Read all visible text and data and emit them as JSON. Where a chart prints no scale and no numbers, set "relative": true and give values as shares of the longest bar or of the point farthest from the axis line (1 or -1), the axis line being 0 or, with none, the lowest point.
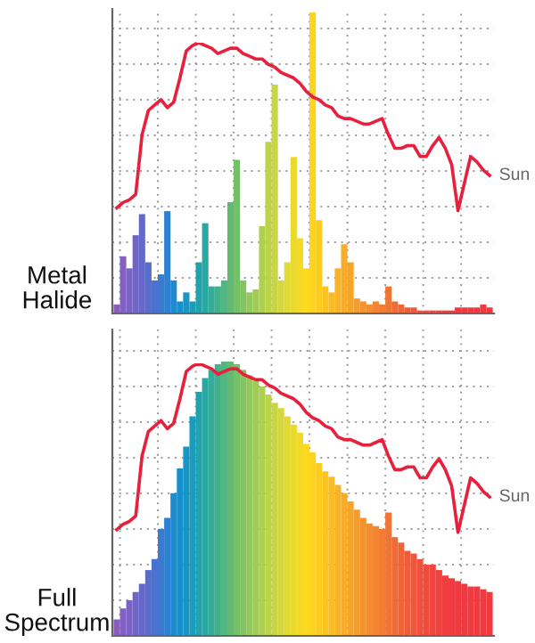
{
  "chart_data": [
    {
      "type": "bar",
      "ylabel": "Metal Halide",
      "relative": true,
      "grid": true,
      "categories": [
        null,
        null,
        null,
        null,
        null,
        null,
        null,
        null,
        null,
        null,
        null,
        null,
        null,
        null,
        null,
        null,
        null,
        null,
        null,
        null,
        null,
        null,
        null,
        null,
        null,
        null,
        null,
        null,
        null,
        null,
        null,
        null,
        null,
        null,
        null,
        null,
        null,
        null,
        null,
        null,
        null,
        null,
        null,
        null,
        null,
        null,
        null,
        null,
        null,
        null,
        null,
        null,
        null,
        null,
        null,
        null,
        null,
        null,
        null,
        null
      ],
      "colors": [
        "#8a5cc0",
        "#8260c4",
        "#7a62c6",
        "#7066c8",
        "#6468ca",
        "#586ccc",
        "#4a72ce",
        "#3c7ad0",
        "#2c82d0",
        "#1e8ad0",
        "#1690cc",
        "#1696c4",
        "#1a9cba",
        "#20a2ae",
        "#28a8a2",
        "#34ac96",
        "#42b08a",
        "#52b67e",
        "#62ba72",
        "#72c068",
        "#82c462",
        "#92c85c",
        "#a0cc56",
        "#aed050",
        "#bcd44a",
        "#c8d644",
        "#d4d83c",
        "#e0da34",
        "#eada2c",
        "#f4da24",
        "#fcd81e",
        "#fed41c",
        "#fccc1e",
        "#fcc420",
        "#fabc24",
        "#f8b426",
        "#f8ac28",
        "#f6a42a",
        "#f69c2c",
        "#f4942e",
        "#f48c30",
        "#f28432",
        "#f27c32",
        "#f07434",
        "#f06c36",
        "#f06438",
        "#f05c3a",
        "#f0563a",
        "#f0503c",
        "#f04a3c",
        "#f0463e",
        "#f0423e",
        "#f03e40",
        "#f03c40",
        "#f03a40",
        "#f03a40",
        "#f03a40",
        "#f03a40",
        "#f03a40",
        "#f03a40"
      ],
      "values": [
        0.03,
        0.19,
        0.15,
        0.26,
        0.33,
        0.17,
        0.11,
        0.13,
        0.34,
        0.11,
        0.04,
        0.07,
        0.04,
        0.17,
        0.3,
        0.09,
        0.09,
        0.11,
        0.37,
        0.51,
        0.11,
        0.07,
        0.08,
        0.29,
        0.57,
        0.76,
        0.11,
        0.17,
        0.52,
        0.25,
        0.15,
        1.0,
        0.31,
        0.09,
        0.07,
        0.15,
        0.23,
        0.17,
        0.05,
        0.04,
        0.03,
        0.04,
        0.03,
        0.09,
        0.04,
        0.03,
        0.02,
        0.02,
        0.01,
        0.01,
        0.01,
        0.01,
        0.01,
        0.01,
        0.02,
        0.02,
        0.02,
        0.02,
        0.03,
        0.02
      ]
    },
    {
      "type": "line",
      "relative": true,
      "categories": [
        null,
        null,
        null,
        null,
        null,
        null,
        null,
        null,
        null,
        null,
        null,
        null,
        null,
        null,
        null,
        null,
        null,
        null,
        null,
        null,
        null,
        null,
        null,
        null,
        null,
        null,
        null,
        null,
        null,
        null,
        null,
        null,
        null,
        null,
        null,
        null,
        null,
        null,
        null,
        null,
        null,
        null,
        null,
        null,
        null,
        null,
        null,
        null,
        null,
        null,
        null,
        null,
        null,
        null,
        null,
        null,
        null,
        null,
        null,
        null
      ],
      "series": [
        {
          "name": "Sun",
          "color": "#e8203c",
          "values": [
            0.39,
            0.41,
            0.42,
            0.44,
            0.66,
            0.75,
            0.77,
            0.79,
            0.76,
            0.78,
            0.87,
            0.97,
            0.99,
            1.0,
            0.99,
            0.98,
            0.96,
            0.97,
            0.98,
            0.98,
            0.96,
            0.95,
            0.94,
            0.94,
            0.92,
            0.91,
            0.89,
            0.88,
            0.87,
            0.85,
            0.82,
            0.8,
            0.79,
            0.77,
            0.76,
            0.73,
            0.72,
            0.72,
            0.71,
            0.7,
            0.7,
            0.71,
            0.72,
            0.66,
            0.61,
            0.61,
            0.62,
            0.62,
            0.58,
            0.58,
            0.62,
            0.65,
            0.61,
            0.55,
            0.38,
            0.48,
            0.58,
            0.56,
            0.53,
            0.51
          ]
        }
      ]
    },
    {
      "type": "bar",
      "ylabel": "Full Spectrum",
      "relative": true,
      "grid": true,
      "categories": [
        null,
        null,
        null,
        null,
        null,
        null,
        null,
        null,
        null,
        null,
        null,
        null,
        null,
        null,
        null,
        null,
        null,
        null,
        null,
        null,
        null,
        null,
        null,
        null,
        null,
        null,
        null,
        null,
        null,
        null,
        null,
        null,
        null,
        null,
        null,
        null,
        null,
        null,
        null,
        null,
        null,
        null,
        null,
        null,
        null,
        null,
        null,
        null,
        null,
        null,
        null,
        null,
        null,
        null,
        null,
        null,
        null,
        null,
        null,
        null
      ],
      "colors": [
        "#8a5cc0",
        "#8260c4",
        "#7a62c6",
        "#7066c8",
        "#6468ca",
        "#586ccc",
        "#4a72ce",
        "#3c7ad0",
        "#2c82d0",
        "#1e8ad0",
        "#1690cc",
        "#1696c4",
        "#1a9cba",
        "#20a2ae",
        "#28a8a2",
        "#34ac96",
        "#42b08a",
        "#52b67e",
        "#62ba72",
        "#72c068",
        "#82c462",
        "#92c85c",
        "#a0cc56",
        "#aed050",
        "#bcd44a",
        "#c8d644",
        "#d4d83c",
        "#e0da34",
        "#eada2c",
        "#f4da24",
        "#fcd81e",
        "#fed41c",
        "#fccc1e",
        "#fcc420",
        "#fabc24",
        "#f8b426",
        "#f8ac28",
        "#f6a42a",
        "#f69c2c",
        "#f4942e",
        "#f48c30",
        "#f28432",
        "#f27c32",
        "#f07434",
        "#f06c36",
        "#f06438",
        "#f05c3a",
        "#f0563a",
        "#f0503c",
        "#f04a3c",
        "#f0463e",
        "#f0423e",
        "#f03e40",
        "#f03c40",
        "#f03a40",
        "#f03a40",
        "#f03a40",
        "#f03a40",
        "#f03a40",
        "#f03a40"
      ],
      "values": [
        0.06,
        0.1,
        0.13,
        0.16,
        0.19,
        0.24,
        0.28,
        0.39,
        0.43,
        0.52,
        0.61,
        0.69,
        0.8,
        0.89,
        0.94,
        0.97,
        0.99,
        1.0,
        1.0,
        0.99,
        0.97,
        0.95,
        0.93,
        0.91,
        0.88,
        0.85,
        0.83,
        0.8,
        0.77,
        0.74,
        0.7,
        0.67,
        0.63,
        0.6,
        0.58,
        0.55,
        0.52,
        0.49,
        0.46,
        0.43,
        0.41,
        0.4,
        0.39,
        0.45,
        0.36,
        0.34,
        0.31,
        0.3,
        0.28,
        0.26,
        0.26,
        0.24,
        0.22,
        0.21,
        0.2,
        0.19,
        0.18,
        0.18,
        0.17,
        0.16
      ]
    },
    {
      "type": "line",
      "relative": true,
      "categories": [
        null,
        null,
        null,
        null,
        null,
        null,
        null,
        null,
        null,
        null,
        null,
        null,
        null,
        null,
        null,
        null,
        null,
        null,
        null,
        null,
        null,
        null,
        null,
        null,
        null,
        null,
        null,
        null,
        null,
        null,
        null,
        null,
        null,
        null,
        null,
        null,
        null,
        null,
        null,
        null,
        null,
        null,
        null,
        null,
        null,
        null,
        null,
        null,
        null,
        null,
        null,
        null,
        null,
        null,
        null,
        null,
        null,
        null,
        null,
        null
      ],
      "series": [
        {
          "name": "Sun",
          "color": "#e8203c",
          "values": [
            0.39,
            0.41,
            0.42,
            0.44,
            0.66,
            0.75,
            0.77,
            0.79,
            0.76,
            0.78,
            0.87,
            0.97,
            0.99,
            1.0,
            0.99,
            0.98,
            0.96,
            0.97,
            0.98,
            0.98,
            0.96,
            0.95,
            0.94,
            0.94,
            0.92,
            0.91,
            0.89,
            0.88,
            0.87,
            0.85,
            0.82,
            0.8,
            0.79,
            0.77,
            0.76,
            0.73,
            0.72,
            0.72,
            0.71,
            0.7,
            0.7,
            0.71,
            0.72,
            0.66,
            0.61,
            0.61,
            0.62,
            0.62,
            0.58,
            0.58,
            0.62,
            0.65,
            0.61,
            0.55,
            0.38,
            0.48,
            0.58,
            0.56,
            0.53,
            0.51
          ]
        }
      ]
    }
  ]
}
